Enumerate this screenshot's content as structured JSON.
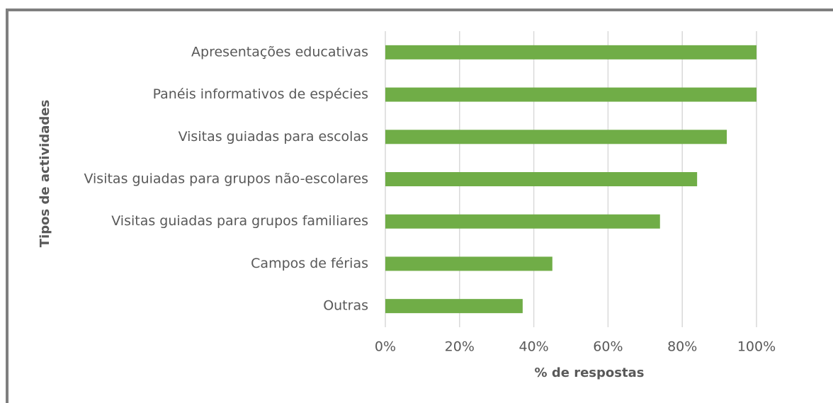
{
  "chart_data": {
    "type": "hbar",
    "xlabel": "% de respostas",
    "ylabel": "Tipos de actividades",
    "categories": [
      "Apresentações educativas",
      "Panéis informativos de espécies",
      "Visitas guiadas para escolas",
      "Visitas guiadas para grupos não-escolares",
      "Visitas guiadas para grupos familiares",
      "Campos de férias",
      "Outras"
    ],
    "values": [
      100,
      100,
      92,
      84,
      74,
      45,
      37
    ],
    "color": "#70ad47",
    "xlim": [
      0,
      100
    ],
    "xticks": [
      {
        "value": 0,
        "label": "0%"
      },
      {
        "value": 20,
        "label": "20%"
      },
      {
        "value": 40,
        "label": "40%"
      },
      {
        "value": 60,
        "label": "60%"
      },
      {
        "value": 80,
        "label": "80%"
      },
      {
        "value": 100,
        "label": "100%"
      }
    ],
    "grid": true
  }
}
